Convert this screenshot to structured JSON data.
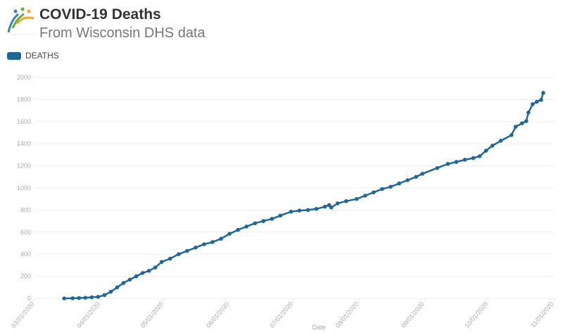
{
  "header": {
    "title": "COVID-19 Deaths",
    "subtitle": "From Wisconsin DHS data"
  },
  "colors": {
    "series": "#1f6896",
    "grid": "#eeeeee",
    "axis_text": "#aaaaaa"
  },
  "chart_data": {
    "type": "line",
    "title": "COVID-19 Deaths",
    "subtitle": "From Wisconsin DHS data",
    "xlabel": "Date",
    "ylabel": "",
    "xlim": [
      "03/01/2020",
      "11/01/2020"
    ],
    "ylim": [
      0,
      2000
    ],
    "yticks": [
      0,
      200,
      400,
      600,
      800,
      1000,
      1200,
      1400,
      1600,
      1800,
      2000
    ],
    "xticks": [
      "03/01/2020",
      "04/01/2020",
      "05/01/2020",
      "06/01/2020",
      "07/01/2020",
      "08/01/2020",
      "09/01/2020",
      "10/01/2020",
      "11/01/2020"
    ],
    "grid": true,
    "legend": "top-left",
    "series": [
      {
        "name": "DEATHS",
        "points": [
          [
            "03/15/2020",
            0
          ],
          [
            "03/19/2020",
            1
          ],
          [
            "03/22/2020",
            3
          ],
          [
            "03/25/2020",
            6
          ],
          [
            "03/28/2020",
            10
          ],
          [
            "03/31/2020",
            14
          ],
          [
            "04/03/2020",
            30
          ],
          [
            "04/06/2020",
            60
          ],
          [
            "04/09/2020",
            100
          ],
          [
            "04/12/2020",
            140
          ],
          [
            "04/15/2020",
            170
          ],
          [
            "04/18/2020",
            200
          ],
          [
            "04/21/2020",
            230
          ],
          [
            "04/24/2020",
            250
          ],
          [
            "04/27/2020",
            280
          ],
          [
            "04/30/2020",
            330
          ],
          [
            "05/04/2020",
            360
          ],
          [
            "05/08/2020",
            400
          ],
          [
            "05/12/2020",
            430
          ],
          [
            "05/16/2020",
            460
          ],
          [
            "05/20/2020",
            490
          ],
          [
            "05/24/2020",
            510
          ],
          [
            "05/28/2020",
            540
          ],
          [
            "06/01/2020",
            585
          ],
          [
            "06/05/2020",
            620
          ],
          [
            "06/09/2020",
            650
          ],
          [
            "06/13/2020",
            680
          ],
          [
            "06/17/2020",
            700
          ],
          [
            "06/21/2020",
            720
          ],
          [
            "06/25/2020",
            750
          ],
          [
            "06/30/2020",
            785
          ],
          [
            "07/04/2020",
            795
          ],
          [
            "07/08/2020",
            800
          ],
          [
            "07/12/2020",
            810
          ],
          [
            "07/16/2020",
            830
          ],
          [
            "07/18/2020",
            845
          ],
          [
            "07/19/2020",
            823
          ],
          [
            "07/22/2020",
            860
          ],
          [
            "07/26/2020",
            880
          ],
          [
            "07/31/2020",
            900
          ],
          [
            "08/04/2020",
            930
          ],
          [
            "08/08/2020",
            960
          ],
          [
            "08/12/2020",
            990
          ],
          [
            "08/16/2020",
            1010
          ],
          [
            "08/20/2020",
            1040
          ],
          [
            "08/24/2020",
            1070
          ],
          [
            "08/28/2020",
            1100
          ],
          [
            "08/31/2020",
            1128
          ],
          [
            "09/07/2020",
            1180
          ],
          [
            "09/12/2020",
            1217
          ],
          [
            "09/16/2020",
            1235
          ],
          [
            "09/20/2020",
            1255
          ],
          [
            "09/24/2020",
            1270
          ],
          [
            "09/27/2020",
            1287
          ],
          [
            "09/30/2020",
            1337
          ],
          [
            "10/03/2020",
            1382
          ],
          [
            "10/07/2020",
            1427
          ],
          [
            "10/12/2020",
            1478
          ],
          [
            "10/14/2020",
            1554
          ],
          [
            "10/17/2020",
            1585
          ],
          [
            "10/19/2020",
            1605
          ],
          [
            "10/20/2020",
            1682
          ],
          [
            "10/22/2020",
            1758
          ],
          [
            "10/24/2020",
            1780
          ],
          [
            "10/26/2020",
            1796
          ],
          [
            "10/27/2020",
            1860
          ]
        ]
      }
    ]
  }
}
